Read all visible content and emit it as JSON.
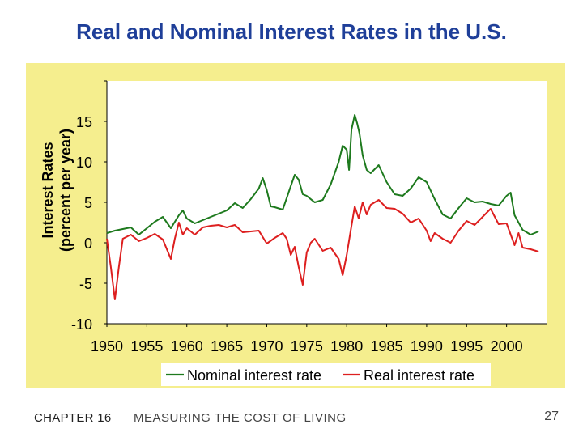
{
  "slide": {
    "title": "Real and Nominal Interest Rates in the U.S.",
    "chapter": "CHAPTER 16",
    "chapter_title": "MEASURING THE COST OF LIVING",
    "page_number": "27"
  },
  "colors": {
    "nominal": "#1e7a1e",
    "real": "#dd1f1f",
    "background": "#f5ee8e",
    "title": "#1f3f99"
  },
  "chart_data": {
    "type": "line",
    "title": "Real and Nominal Interest Rates in the U.S.",
    "ylabel_line1": "Interest Rates",
    "ylabel_line2": "(percent per year)",
    "xlabel": "",
    "xlim": [
      1950,
      2005
    ],
    "ylim": [
      -10,
      20
    ],
    "yticks": [
      -10,
      -5,
      0,
      5,
      10,
      15
    ],
    "ytick_labels": [
      "-10",
      "-5",
      "0",
      "5",
      "10",
      "15"
    ],
    "xticks": [
      1950,
      1955,
      1960,
      1965,
      1970,
      1975,
      1980,
      1985,
      1990,
      1995,
      2000
    ],
    "xtick_labels": [
      "1950",
      "1955",
      "1960",
      "1965",
      "1970",
      "1975",
      "1980",
      "1985",
      "1990",
      "1995",
      "2000"
    ],
    "legend": {
      "position": "bottom",
      "nominal_label": "Nominal interest rate",
      "real_label": "Real interest rate"
    },
    "series": [
      {
        "name": "Nominal interest rate",
        "x": [
          1950,
          1951,
          1952,
          1953,
          1954,
          1955,
          1956,
          1957,
          1958,
          1959,
          1959.5,
          1960,
          1961,
          1962,
          1963,
          1964,
          1965,
          1966,
          1967,
          1968,
          1969,
          1969.5,
          1970,
          1970.5,
          1971,
          1972,
          1973,
          1973.5,
          1974,
          1974.5,
          1975,
          1976,
          1977,
          1978,
          1979,
          1979.5,
          1980,
          1980.3,
          1980.6,
          1981,
          1981.3,
          1981.6,
          1982,
          1982.5,
          1983,
          1984,
          1985,
          1986,
          1987,
          1988,
          1989,
          1990,
          1991,
          1992,
          1993,
          1994,
          1995,
          1996,
          1997,
          1998,
          1999,
          2000,
          2000.5,
          2001,
          2002,
          2003,
          2004
        ],
        "values": [
          1.2,
          1.5,
          1.7,
          1.9,
          1.0,
          1.8,
          2.6,
          3.2,
          1.8,
          3.4,
          4.0,
          3.0,
          2.4,
          2.8,
          3.2,
          3.6,
          4.0,
          4.9,
          4.3,
          5.4,
          6.7,
          8.0,
          6.5,
          4.5,
          4.4,
          4.1,
          7.0,
          8.4,
          7.8,
          6.0,
          5.8,
          5.0,
          5.3,
          7.2,
          10.0,
          12.0,
          11.5,
          9.0,
          14.0,
          15.8,
          14.8,
          13.5,
          10.8,
          9.0,
          8.6,
          9.6,
          7.5,
          6.0,
          5.8,
          6.7,
          8.1,
          7.5,
          5.4,
          3.5,
          3.0,
          4.3,
          5.5,
          5.0,
          5.1,
          4.8,
          4.6,
          5.8,
          6.2,
          3.4,
          1.6,
          1.0,
          1.4
        ]
      },
      {
        "name": "Real interest rate",
        "x": [
          1950,
          1950.5,
          1951,
          1951.5,
          1952,
          1953,
          1954,
          1955,
          1956,
          1957,
          1958,
          1958.5,
          1959,
          1959.5,
          1960,
          1961,
          1962,
          1963,
          1964,
          1965,
          1966,
          1967,
          1968,
          1969,
          1970,
          1971,
          1972,
          1972.5,
          1973,
          1973.5,
          1974,
          1974.5,
          1975,
          1975.5,
          1976,
          1977,
          1978,
          1979,
          1979.5,
          1980,
          1980.5,
          1981,
          1981.5,
          1982,
          1982.5,
          1983,
          1984,
          1985,
          1986,
          1987,
          1988,
          1989,
          1990,
          1990.5,
          1991,
          1992,
          1993,
          1994,
          1995,
          1996,
          1997,
          1998,
          1999,
          2000,
          2001,
          2001.5,
          2002,
          2003,
          2004
        ],
        "values": [
          0.5,
          -3.0,
          -7.0,
          -3.0,
          0.5,
          1.0,
          0.2,
          0.6,
          1.1,
          0.4,
          -2.0,
          0.5,
          2.5,
          1.0,
          1.8,
          1.0,
          1.9,
          2.1,
          2.2,
          1.9,
          2.2,
          1.3,
          1.4,
          1.5,
          -0.1,
          0.6,
          1.2,
          0.5,
          -1.5,
          -0.5,
          -3.0,
          -5.2,
          -1.2,
          0.0,
          0.5,
          -1.0,
          -0.6,
          -2.0,
          -4.0,
          -1.5,
          1.5,
          4.5,
          3.0,
          5.0,
          3.5,
          4.7,
          5.3,
          4.3,
          4.2,
          3.6,
          2.5,
          3.0,
          1.5,
          0.2,
          1.2,
          0.5,
          0.0,
          1.5,
          2.7,
          2.2,
          3.2,
          4.2,
          2.3,
          2.4,
          -0.3,
          1.2,
          -0.6,
          -0.8,
          -1.1
        ]
      }
    ]
  }
}
